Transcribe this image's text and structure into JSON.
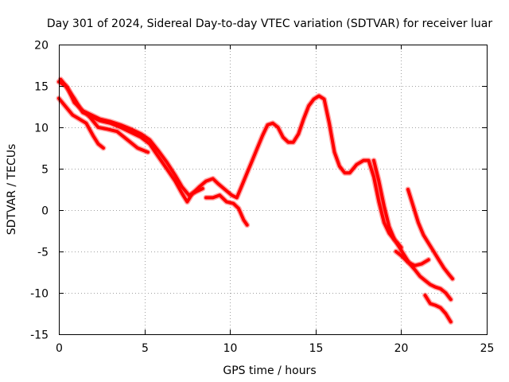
{
  "chart_data": {
    "type": "line",
    "title": "Day 301 of 2024, Sidereal Day-to-day VTEC variation (SDTVAR) for receiver luar",
    "xlabel": "GPS time / hours",
    "ylabel": "SDTVAR / TECUs",
    "xlim": [
      0,
      25
    ],
    "ylim": [
      -15,
      20
    ],
    "xticks": [
      0,
      5,
      10,
      15,
      20,
      25
    ],
    "yticks": [
      -15,
      -10,
      -5,
      0,
      5,
      10,
      15,
      20
    ],
    "xtick_labels": [
      "0",
      "5",
      "10",
      "15",
      "20",
      "25"
    ],
    "ytick_labels": [
      "-15",
      "-10",
      "-5",
      "0",
      "5",
      "10",
      "15",
      "20"
    ],
    "grid": true,
    "line_color": "#ff0000",
    "series": [
      {
        "name": "trace-1",
        "x": [
          0,
          0.4,
          0.9,
          1.4,
          1.9,
          2.4,
          3.0,
          3.6,
          4.2,
          4.8,
          5.3,
          5.8,
          6.3,
          6.8,
          7.2,
          7.5,
          7.8,
          8.2,
          8.6,
          9.0,
          9.3,
          9.7,
          10.1,
          10.4,
          10.7,
          11.0,
          11.3,
          11.6,
          11.9,
          12.2,
          12.5,
          12.8,
          13.1,
          13.4,
          13.7,
          14.0,
          14.3,
          14.6,
          14.9,
          15.2,
          15.5,
          15.8,
          16.1,
          16.4,
          16.7,
          17.0,
          17.4,
          17.8,
          18.1,
          18.4,
          18.7,
          19.0,
          19.3,
          19.6,
          19.8,
          20.0
        ],
        "values": [
          15.5,
          15.0,
          13.5,
          11.8,
          11.3,
          10.8,
          10.5,
          10.0,
          9.4,
          8.8,
          8.0,
          6.5,
          5.0,
          3.5,
          2.0,
          1.0,
          2.0,
          2.8,
          3.5,
          3.8,
          3.2,
          2.5,
          1.8,
          1.5,
          3.0,
          4.5,
          6.0,
          7.5,
          9.0,
          10.3,
          10.5,
          10.0,
          8.8,
          8.2,
          8.2,
          9.2,
          11.0,
          12.6,
          13.4,
          13.8,
          13.4,
          10.5,
          7.0,
          5.3,
          4.5,
          4.5,
          5.5,
          6.0,
          6.0,
          4.0,
          1.0,
          -1.5,
          -2.8,
          -3.6,
          -4.0,
          -4.5
        ]
      },
      {
        "name": "trace-2",
        "x": [
          0.1,
          0.5,
          0.9,
          1.4,
          1.9,
          2.4,
          3.0,
          3.6,
          4.2,
          4.8,
          5.3,
          5.8,
          6.3,
          6.8,
          7.2,
          7.6,
          8.0,
          8.4
        ],
        "values": [
          15.8,
          14.8,
          13.0,
          12.0,
          11.5,
          11.0,
          10.7,
          10.3,
          9.8,
          9.2,
          8.5,
          7.2,
          5.8,
          4.2,
          2.8,
          1.8,
          2.2,
          2.6
        ]
      },
      {
        "name": "trace-3",
        "x": [
          0,
          0.4,
          0.8,
          1.2,
          1.6,
          2.0,
          2.3,
          2.6
        ],
        "values": [
          13.5,
          12.5,
          11.5,
          11.0,
          10.5,
          9.0,
          8.0,
          7.5
        ]
      },
      {
        "name": "trace-4",
        "x": [
          1.7,
          2.3,
          2.8,
          3.4,
          4.0,
          4.6,
          5.2
        ],
        "values": [
          11.5,
          10.0,
          9.8,
          9.5,
          8.5,
          7.5,
          7.0
        ]
      },
      {
        "name": "trace-5",
        "x": [
          8.6,
          9.0,
          9.4,
          9.8,
          10.2,
          10.5,
          10.8,
          11.0
        ],
        "values": [
          1.5,
          1.5,
          1.8,
          1.0,
          0.8,
          0.2,
          -1.2,
          -1.8
        ]
      },
      {
        "name": "trace-6",
        "x": [
          18.4,
          18.7,
          19.0,
          19.3,
          19.6,
          19.9,
          20.2,
          20.5,
          20.8,
          21.1,
          21.4,
          21.7,
          22.0,
          22.3,
          22.6,
          22.9
        ],
        "values": [
          6.0,
          3.5,
          0.5,
          -2.0,
          -3.5,
          -4.5,
          -5.5,
          -6.5,
          -7.2,
          -8.0,
          -8.5,
          -9.0,
          -9.3,
          -9.5,
          -10.0,
          -10.8
        ]
      },
      {
        "name": "trace-7",
        "x": [
          19.7,
          20.0,
          20.4,
          20.8,
          21.2,
          21.6
        ],
        "values": [
          -5.0,
          -5.5,
          -6.3,
          -6.7,
          -6.5,
          -6.0
        ]
      },
      {
        "name": "trace-8",
        "x": [
          20.4,
          20.7,
          21.0,
          21.3,
          21.6,
          21.9,
          22.2,
          22.5,
          22.8,
          23.0
        ],
        "values": [
          2.5,
          0.5,
          -1.5,
          -3.0,
          -4.0,
          -5.0,
          -6.0,
          -7.0,
          -7.8,
          -8.3
        ]
      },
      {
        "name": "trace-9",
        "x": [
          21.4,
          21.7,
          22.0,
          22.3,
          22.6,
          22.9
        ],
        "values": [
          -10.3,
          -11.3,
          -11.5,
          -11.8,
          -12.5,
          -13.5
        ]
      }
    ]
  }
}
